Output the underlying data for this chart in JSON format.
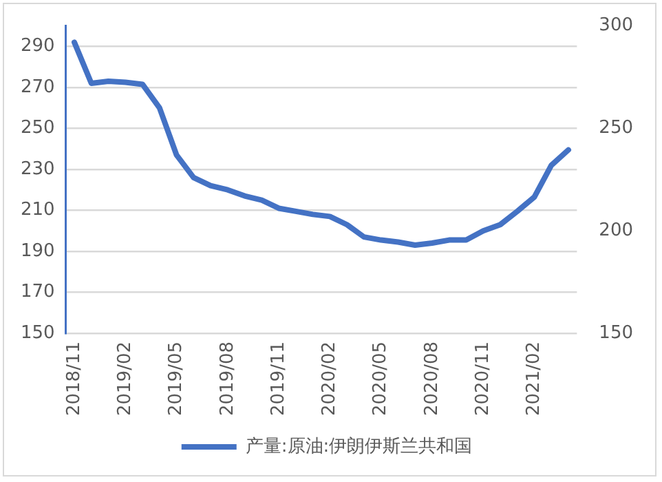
{
  "chart_data": {
    "type": "line",
    "categories": [
      "2018/11",
      null,
      null,
      "2019/02",
      null,
      null,
      "2019/05",
      null,
      null,
      "2019/08",
      null,
      null,
      "2019/11",
      null,
      null,
      "2020/02",
      null,
      null,
      "2020/05",
      null,
      null,
      "2020/08",
      null,
      null,
      "2020/11",
      null,
      null,
      "2021/02",
      null,
      null
    ],
    "series": [
      {
        "name": "产量:原油:伊朗伊斯兰共和国",
        "color": "#4472c4",
        "values": [
          292,
          272,
          273,
          272.5,
          271.5,
          260,
          237,
          226,
          222,
          220,
          217,
          215,
          211,
          209.5,
          208,
          207,
          203,
          197,
          195.5,
          194.5,
          193,
          194,
          195.5,
          195.5,
          200,
          203,
          209.5,
          216.5,
          232,
          239.5
        ]
      }
    ],
    "ylim": [
      150,
      300
    ],
    "yticks": [
      150,
      170,
      190,
      210,
      230,
      250,
      270,
      290
    ],
    "y2lim": [
      150,
      300
    ],
    "y2ticks": [
      150,
      200,
      250,
      300
    ],
    "grid": "y",
    "legend": "bottom",
    "marker": "none",
    "line_style": "solid"
  }
}
